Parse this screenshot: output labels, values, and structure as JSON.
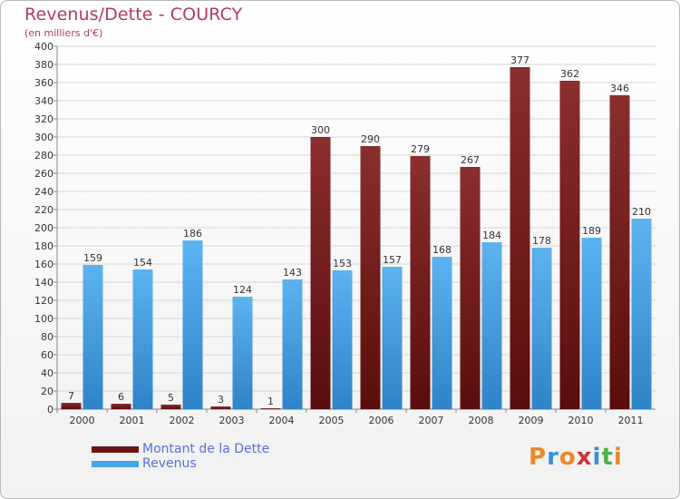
{
  "chart_data": {
    "type": "bar",
    "title": "Revenus/Dette - COURCY",
    "subtitle": "(en milliers d'€)",
    "categories": [
      "2000",
      "2001",
      "2002",
      "2003",
      "2004",
      "2005",
      "2006",
      "2007",
      "2008",
      "2009",
      "2010",
      "2011"
    ],
    "series": [
      {
        "name": "Montant de la Dette",
        "color": "#7a1c1c",
        "values": [
          7,
          6,
          5,
          3,
          1,
          300,
          290,
          279,
          267,
          377,
          362,
          346
        ]
      },
      {
        "name": "Revenus",
        "color": "#4aa3e6",
        "values": [
          159,
          154,
          186,
          124,
          143,
          153,
          157,
          168,
          184,
          178,
          189,
          210
        ]
      }
    ],
    "ylim": [
      0,
      400
    ],
    "ytick_step": 20,
    "grid": true,
    "legend_position": "bottom-left"
  },
  "logo": {
    "text": "Proxiti",
    "colors": [
      "#e8892a",
      "#3a8fd8",
      "#e8892a",
      "#c33",
      "#3a8fd8",
      "#4caf50",
      "#e8892a"
    ]
  }
}
